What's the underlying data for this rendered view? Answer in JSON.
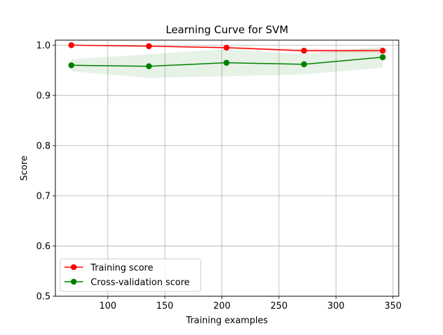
{
  "chart_data": {
    "type": "line",
    "title": "Learning Curve for SVM",
    "xlabel": "Training examples",
    "ylabel": "Score",
    "xlim": [
      54,
      355
    ],
    "ylim": [
      0.5,
      1.01
    ],
    "grid": true,
    "legend_position": "lower-left",
    "x": [
      68,
      136,
      204,
      272,
      341
    ],
    "xticks": [
      100,
      150,
      200,
      250,
      300,
      350
    ],
    "yticks": [
      0.5,
      0.6,
      0.7,
      0.8,
      0.9,
      1.0
    ],
    "series": [
      {
        "name": "Training score",
        "color": "#ff0000",
        "values": [
          1.0,
          0.998,
          0.995,
          0.989,
          0.989
        ],
        "band_low": [
          1.0,
          0.997,
          0.993,
          0.985,
          0.985
        ],
        "band_high": [
          1.0,
          0.999,
          0.997,
          0.993,
          0.993
        ],
        "band_color": "#ff0000"
      },
      {
        "name": "Cross-validation score",
        "color": "#008000",
        "values": [
          0.96,
          0.958,
          0.965,
          0.962,
          0.976
        ],
        "band_low": [
          0.948,
          0.935,
          0.938,
          0.942,
          0.955
        ],
        "band_high": [
          0.972,
          0.982,
          0.992,
          0.982,
          0.997
        ],
        "band_color": "#008000"
      }
    ]
  }
}
